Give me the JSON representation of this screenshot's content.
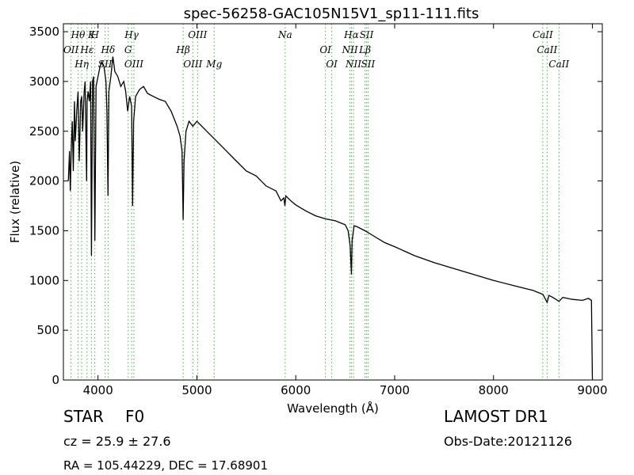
{
  "chart_data": {
    "type": "line",
    "title": "spec-56258-GAC105N15V1_sp11-111.fits",
    "xlabel": "Wavelength (Å)",
    "ylabel": "Flux (relative)",
    "xlim": [
      3650,
      9100
    ],
    "ylim": [
      0,
      3580
    ],
    "xticks": [
      4000,
      5000,
      6000,
      7000,
      8000,
      9000
    ],
    "yticks": [
      0,
      500,
      1000,
      1500,
      2000,
      2500,
      3000,
      3500
    ],
    "grid": false,
    "series": [
      {
        "x": [
          3700,
          3712,
          3720,
          3730,
          3740,
          3750,
          3762,
          3770,
          3785,
          3798,
          3810,
          3825,
          3835,
          3845,
          3860,
          3870,
          3885,
          3890,
          3900,
          3912,
          3925,
          3934,
          3945,
          3955,
          3968,
          3980,
          4000,
          4020,
          4040,
          4060,
          4080,
          4090,
          4101,
          4110,
          4130,
          4150,
          4170,
          4200,
          4230,
          4260,
          4280,
          4300,
          4320,
          4340,
          4350,
          4360,
          4380,
          4420,
          4460,
          4500,
          4560,
          4620,
          4680,
          4740,
          4800,
          4830,
          4850,
          4861,
          4870,
          4890,
          4920,
          4960,
          5000,
          5100,
          5200,
          5300,
          5400,
          5500,
          5600,
          5700,
          5800,
          5850,
          5880,
          5890,
          5900,
          5950,
          6000,
          6100,
          6200,
          6300,
          6400,
          6500,
          6530,
          6550,
          6563,
          6570,
          6590,
          6620,
          6700,
          6800,
          6900,
          7000,
          7200,
          7400,
          7600,
          7800,
          8000,
          8200,
          8400,
          8500,
          8542,
          8560,
          8600,
          8662,
          8700,
          8800,
          8900,
          8960,
          8990,
          9000
        ],
        "y": [
          2000,
          2300,
          1900,
          2350,
          2600,
          2100,
          2800,
          2400,
          2700,
          2900,
          2200,
          2800,
          2850,
          2500,
          2900,
          3000,
          2000,
          2800,
          2900,
          2800,
          3000,
          1250,
          3000,
          3050,
          1400,
          2950,
          3050,
          3150,
          3200,
          3150,
          3000,
          2700,
          1850,
          2900,
          3050,
          3250,
          3100,
          3050,
          2950,
          3000,
          2900,
          2700,
          2850,
          2750,
          1750,
          2600,
          2850,
          2920,
          2950,
          2880,
          2850,
          2820,
          2800,
          2700,
          2550,
          2450,
          2300,
          1610,
          2200,
          2500,
          2600,
          2550,
          2600,
          2500,
          2400,
          2300,
          2200,
          2100,
          2050,
          1950,
          1900,
          1800,
          1830,
          1750,
          1850,
          1800,
          1760,
          1700,
          1650,
          1620,
          1600,
          1560,
          1500,
          1350,
          1060,
          1400,
          1550,
          1540,
          1500,
          1440,
          1380,
          1340,
          1250,
          1180,
          1120,
          1060,
          1000,
          950,
          900,
          860,
          780,
          850,
          830,
          790,
          830,
          810,
          800,
          820,
          800,
          0
        ]
      }
    ],
    "lines": {
      "names": [
        "Hθ",
        "OII",
        "Hη",
        "K",
        "Hε",
        "SII",
        "H",
        "Hδ",
        "OIII",
        "Hγ",
        "G",
        "OIII",
        "OIII",
        "Hβ",
        "Mg",
        "Na",
        "OI",
        "OI",
        "Hα",
        "NII",
        "NII",
        "SII",
        "Lβ",
        "SII",
        "CaII",
        "CaII",
        "CaII"
      ],
      "wavelengths": [
        3798,
        3727,
        3835,
        3934,
        3889,
        4072,
        3968,
        4102,
        4363,
        4340,
        4305,
        4959,
        5007,
        4861,
        5175,
        5893,
        6300,
        6364,
        6563,
        6548,
        6583,
        6716,
        6700,
        6731,
        8498,
        8542,
        8662
      ]
    }
  },
  "info": {
    "object_type": "STAR",
    "subclass": "F0",
    "redshift_line": "cz = 25.9 ± 27.6",
    "coords": "RA = 105.44229, DEC = 17.68901",
    "survey": "LAMOST DR1",
    "obs_date": "Obs-Date:20121126"
  },
  "colors": {
    "spectrum": "#000000",
    "line_markers": "#4daf4a"
  }
}
